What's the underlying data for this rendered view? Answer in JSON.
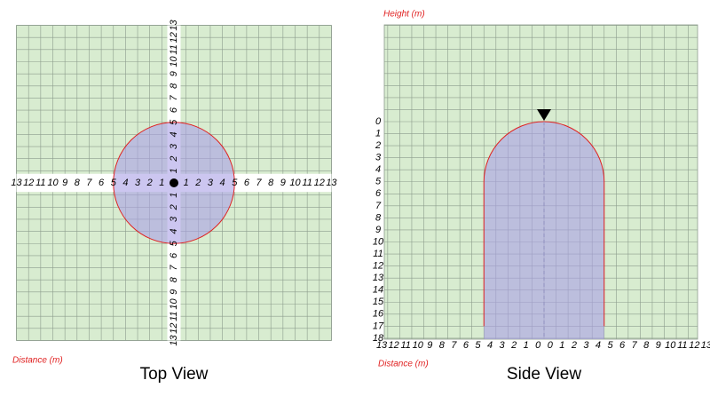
{
  "top_view": {
    "title": "Top View",
    "axis_label": "Distance (m)",
    "ticks": [
      1,
      2,
      3,
      4,
      5,
      6,
      7,
      8,
      9,
      10,
      11,
      12,
      13
    ],
    "radius": 5
  },
  "side_view": {
    "title": "Side View",
    "height_label": "Height (m)",
    "distance_label": "Distance (m)",
    "height_ticks": [
      0,
      1,
      2,
      3,
      4,
      5,
      6,
      7,
      8,
      9,
      10,
      11,
      12,
      13,
      14,
      15,
      16,
      17,
      18
    ],
    "distance_ticks": [
      0,
      1,
      2,
      3,
      4,
      5,
      6,
      7,
      8,
      9,
      10,
      11,
      12,
      13
    ],
    "radius": 5,
    "wall_bottom": 17
  }
}
